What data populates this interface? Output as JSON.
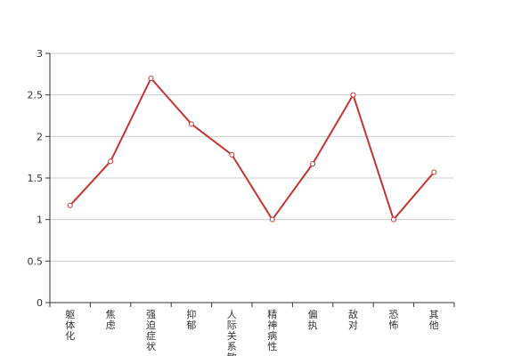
{
  "chart_data": {
    "type": "line",
    "title": "",
    "xlabel": "",
    "ylabel": "",
    "categories": [
      "躯体化",
      "焦虑",
      "强迫症状",
      "抑郁",
      "人际关系敏感",
      "精神病性",
      "偏执",
      "敌对",
      "恐怖",
      "其他"
    ],
    "series": [
      {
        "name": "",
        "values": [
          1.17,
          1.7,
          2.7,
          2.15,
          1.78,
          1.0,
          1.67,
          2.5,
          1.0,
          1.57
        ]
      }
    ],
    "ylim": [
      0,
      3
    ],
    "yticks": [
      0,
      0.5,
      1,
      1.5,
      2,
      2.5,
      3
    ],
    "ytick_labels": [
      "0",
      "0.5",
      "1",
      "1.5",
      "2",
      "2.5",
      "3"
    ],
    "grid": true,
    "legend": "none",
    "colors": {
      "line": "#c23531",
      "grid": "#cccccc",
      "axis": "#333333"
    }
  }
}
